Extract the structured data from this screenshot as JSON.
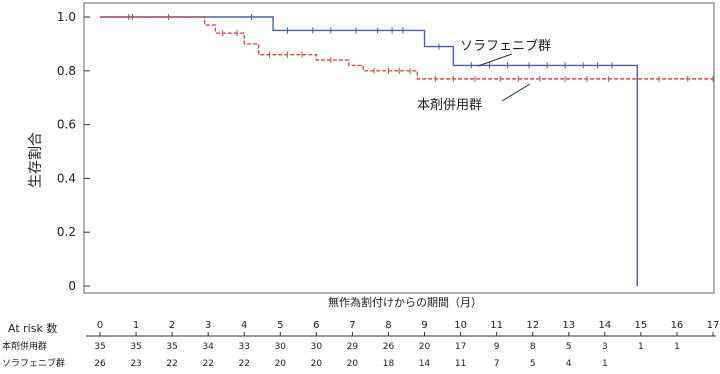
{
  "chart_data": {
    "type": "line",
    "subtype": "kaplan-meier",
    "title": "",
    "xlabel": "無作為割付けからの期間（月）",
    "ylabel": "生存割合",
    "xlim": [
      0,
      17
    ],
    "ylim": [
      0,
      1.0
    ],
    "x_ticks": [
      "0",
      "1",
      "2",
      "3",
      "4",
      "5",
      "6",
      "7",
      "8",
      "9",
      "10",
      "11",
      "12",
      "13",
      "14",
      "15",
      "16",
      "17"
    ],
    "y_ticks": [
      "0",
      "0.2",
      "0.4",
      "0.6",
      "0.8",
      "1.0"
    ],
    "y_tick_values": [
      0,
      0.2,
      0.4,
      0.6,
      0.8,
      1.0
    ],
    "grid": false,
    "series": [
      {
        "name": "ソラフェニブ群",
        "color": "#4a5fa8",
        "line_style": "solid",
        "steps": [
          [
            0,
            1.0
          ],
          [
            4.8,
            0.95
          ],
          [
            9.0,
            0.89
          ],
          [
            9.8,
            0.82
          ],
          [
            14.9,
            0.0
          ]
        ],
        "censor_times": [
          0.8,
          1.9,
          4.2,
          5.2,
          5.9,
          6.4,
          7.1,
          7.7,
          8.1,
          8.4,
          9.4,
          10.3,
          10.8,
          11.3,
          11.9,
          12.4,
          12.9,
          13.4,
          13.8,
          14.2
        ]
      },
      {
        "name": "本剤併用群",
        "color": "#e04848",
        "line_style": "dashed",
        "steps": [
          [
            0,
            1.0
          ],
          [
            2.9,
            0.97
          ],
          [
            3.2,
            0.94
          ],
          [
            4.0,
            0.9
          ],
          [
            4.4,
            0.86
          ],
          [
            6.0,
            0.84
          ],
          [
            6.9,
            0.82
          ],
          [
            7.3,
            0.8
          ],
          [
            8.8,
            0.77
          ]
        ],
        "censor_times": [
          0.9,
          1.9,
          3.4,
          3.8,
          4.7,
          5.2,
          5.6,
          6.4,
          7.6,
          8.0,
          8.3,
          8.6,
          9.3,
          9.8,
          10.4,
          11.1,
          11.6,
          12.2,
          12.9,
          13.5,
          14.1,
          15.5,
          16.3,
          17.0
        ]
      }
    ],
    "series_labels": [
      {
        "text": "ソラフェニブ群"
      },
      {
        "text": "本剤併用群"
      }
    ],
    "at_risk": {
      "label": "At risk 数",
      "rows": [
        {
          "name": "本剤併用群",
          "values": [
            "35",
            "35",
            "35",
            "34",
            "33",
            "30",
            "30",
            "29",
            "26",
            "20",
            "17",
            "9",
            "8",
            "5",
            "3",
            "1",
            "1",
            ""
          ]
        },
        {
          "name": "ソラフェニブ群",
          "values": [
            "26",
            "23",
            "22",
            "22",
            "22",
            "20",
            "20",
            "20",
            "18",
            "14",
            "11",
            "7",
            "5",
            "4",
            "1",
            "",
            "",
            ""
          ]
        }
      ]
    }
  }
}
